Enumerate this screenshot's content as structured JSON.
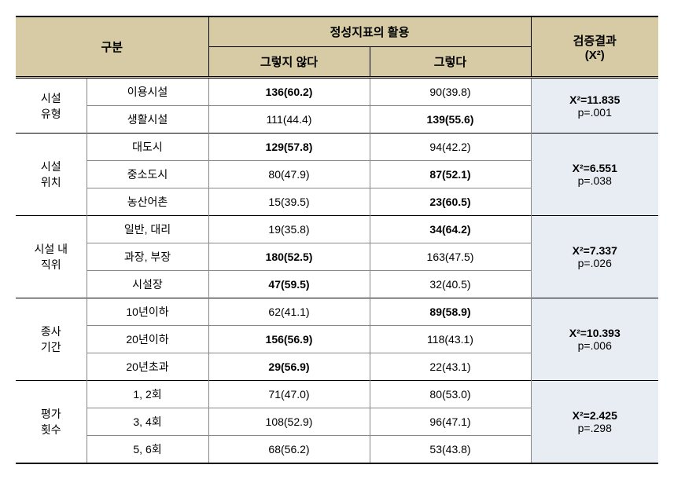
{
  "headers": {
    "category": "구분",
    "usage": "정성지표의 활용",
    "no": "그렇지 않다",
    "yes": "그렇다",
    "result": "검증결과",
    "result_sub": "(X²)"
  },
  "groups": [
    {
      "label_line1": "시설",
      "label_line2": "유형",
      "rows": [
        {
          "sub": "이용시설",
          "no": "136(60.2)",
          "no_bold": true,
          "yes": "90(39.8)",
          "yes_bold": false
        },
        {
          "sub": "생활시설",
          "no": "111(44.4)",
          "no_bold": false,
          "yes": "139(55.6)",
          "yes_bold": true
        }
      ],
      "result_x2": "X²=11.835",
      "result_p": "p=.001",
      "result_bold": true
    },
    {
      "label_line1": "시설",
      "label_line2": "위치",
      "rows": [
        {
          "sub": "대도시",
          "no": "129(57.8)",
          "no_bold": true,
          "yes": "94(42.2)",
          "yes_bold": false
        },
        {
          "sub": "중소도시",
          "no": "80(47.9)",
          "no_bold": false,
          "yes": "87(52.1)",
          "yes_bold": true
        },
        {
          "sub": "농산어촌",
          "no": "15(39.5)",
          "no_bold": false,
          "yes": "23(60.5)",
          "yes_bold": true
        }
      ],
      "result_x2": "X²=6.551",
      "result_p": "p=.038",
      "result_bold": true
    },
    {
      "label_line1": "시설 내",
      "label_line2": "직위",
      "rows": [
        {
          "sub": "일반, 대리",
          "no": "19(35.8)",
          "no_bold": false,
          "yes": "34(64.2)",
          "yes_bold": true
        },
        {
          "sub": "과장, 부장",
          "no": "180(52.5)",
          "no_bold": true,
          "yes": "163(47.5)",
          "yes_bold": false
        },
        {
          "sub": "시설장",
          "no": "47(59.5)",
          "no_bold": true,
          "yes": "32(40.5)",
          "yes_bold": false
        }
      ],
      "result_x2": "X²=7.337",
      "result_p": "p=.026",
      "result_bold": true
    },
    {
      "label_line1": "종사",
      "label_line2": "기간",
      "rows": [
        {
          "sub": "10년이하",
          "no": "62(41.1)",
          "no_bold": false,
          "yes": "89(58.9)",
          "yes_bold": true
        },
        {
          "sub": "20년이하",
          "no": "156(56.9)",
          "no_bold": true,
          "yes": "118(43.1)",
          "yes_bold": false
        },
        {
          "sub": "20년초과",
          "no": "29(56.9)",
          "no_bold": true,
          "yes": "22(43.1)",
          "yes_bold": false
        }
      ],
      "result_x2": "X²=10.393",
      "result_p": "p=.006",
      "result_bold": true
    },
    {
      "label_line1": "평가",
      "label_line2": "횟수",
      "rows": [
        {
          "sub": "1, 2회",
          "no": "71(47.0)",
          "no_bold": false,
          "yes": "80(53.0)",
          "yes_bold": false
        },
        {
          "sub": "3, 4회",
          "no": "108(52.9)",
          "no_bold": false,
          "yes": "96(47.1)",
          "yes_bold": false
        },
        {
          "sub": "5, 6회",
          "no": "68(56.2)",
          "no_bold": false,
          "yes": "53(43.8)",
          "yes_bold": false
        }
      ],
      "result_x2": "X²=2.425",
      "result_p": "p=.298",
      "result_bold": true
    }
  ]
}
